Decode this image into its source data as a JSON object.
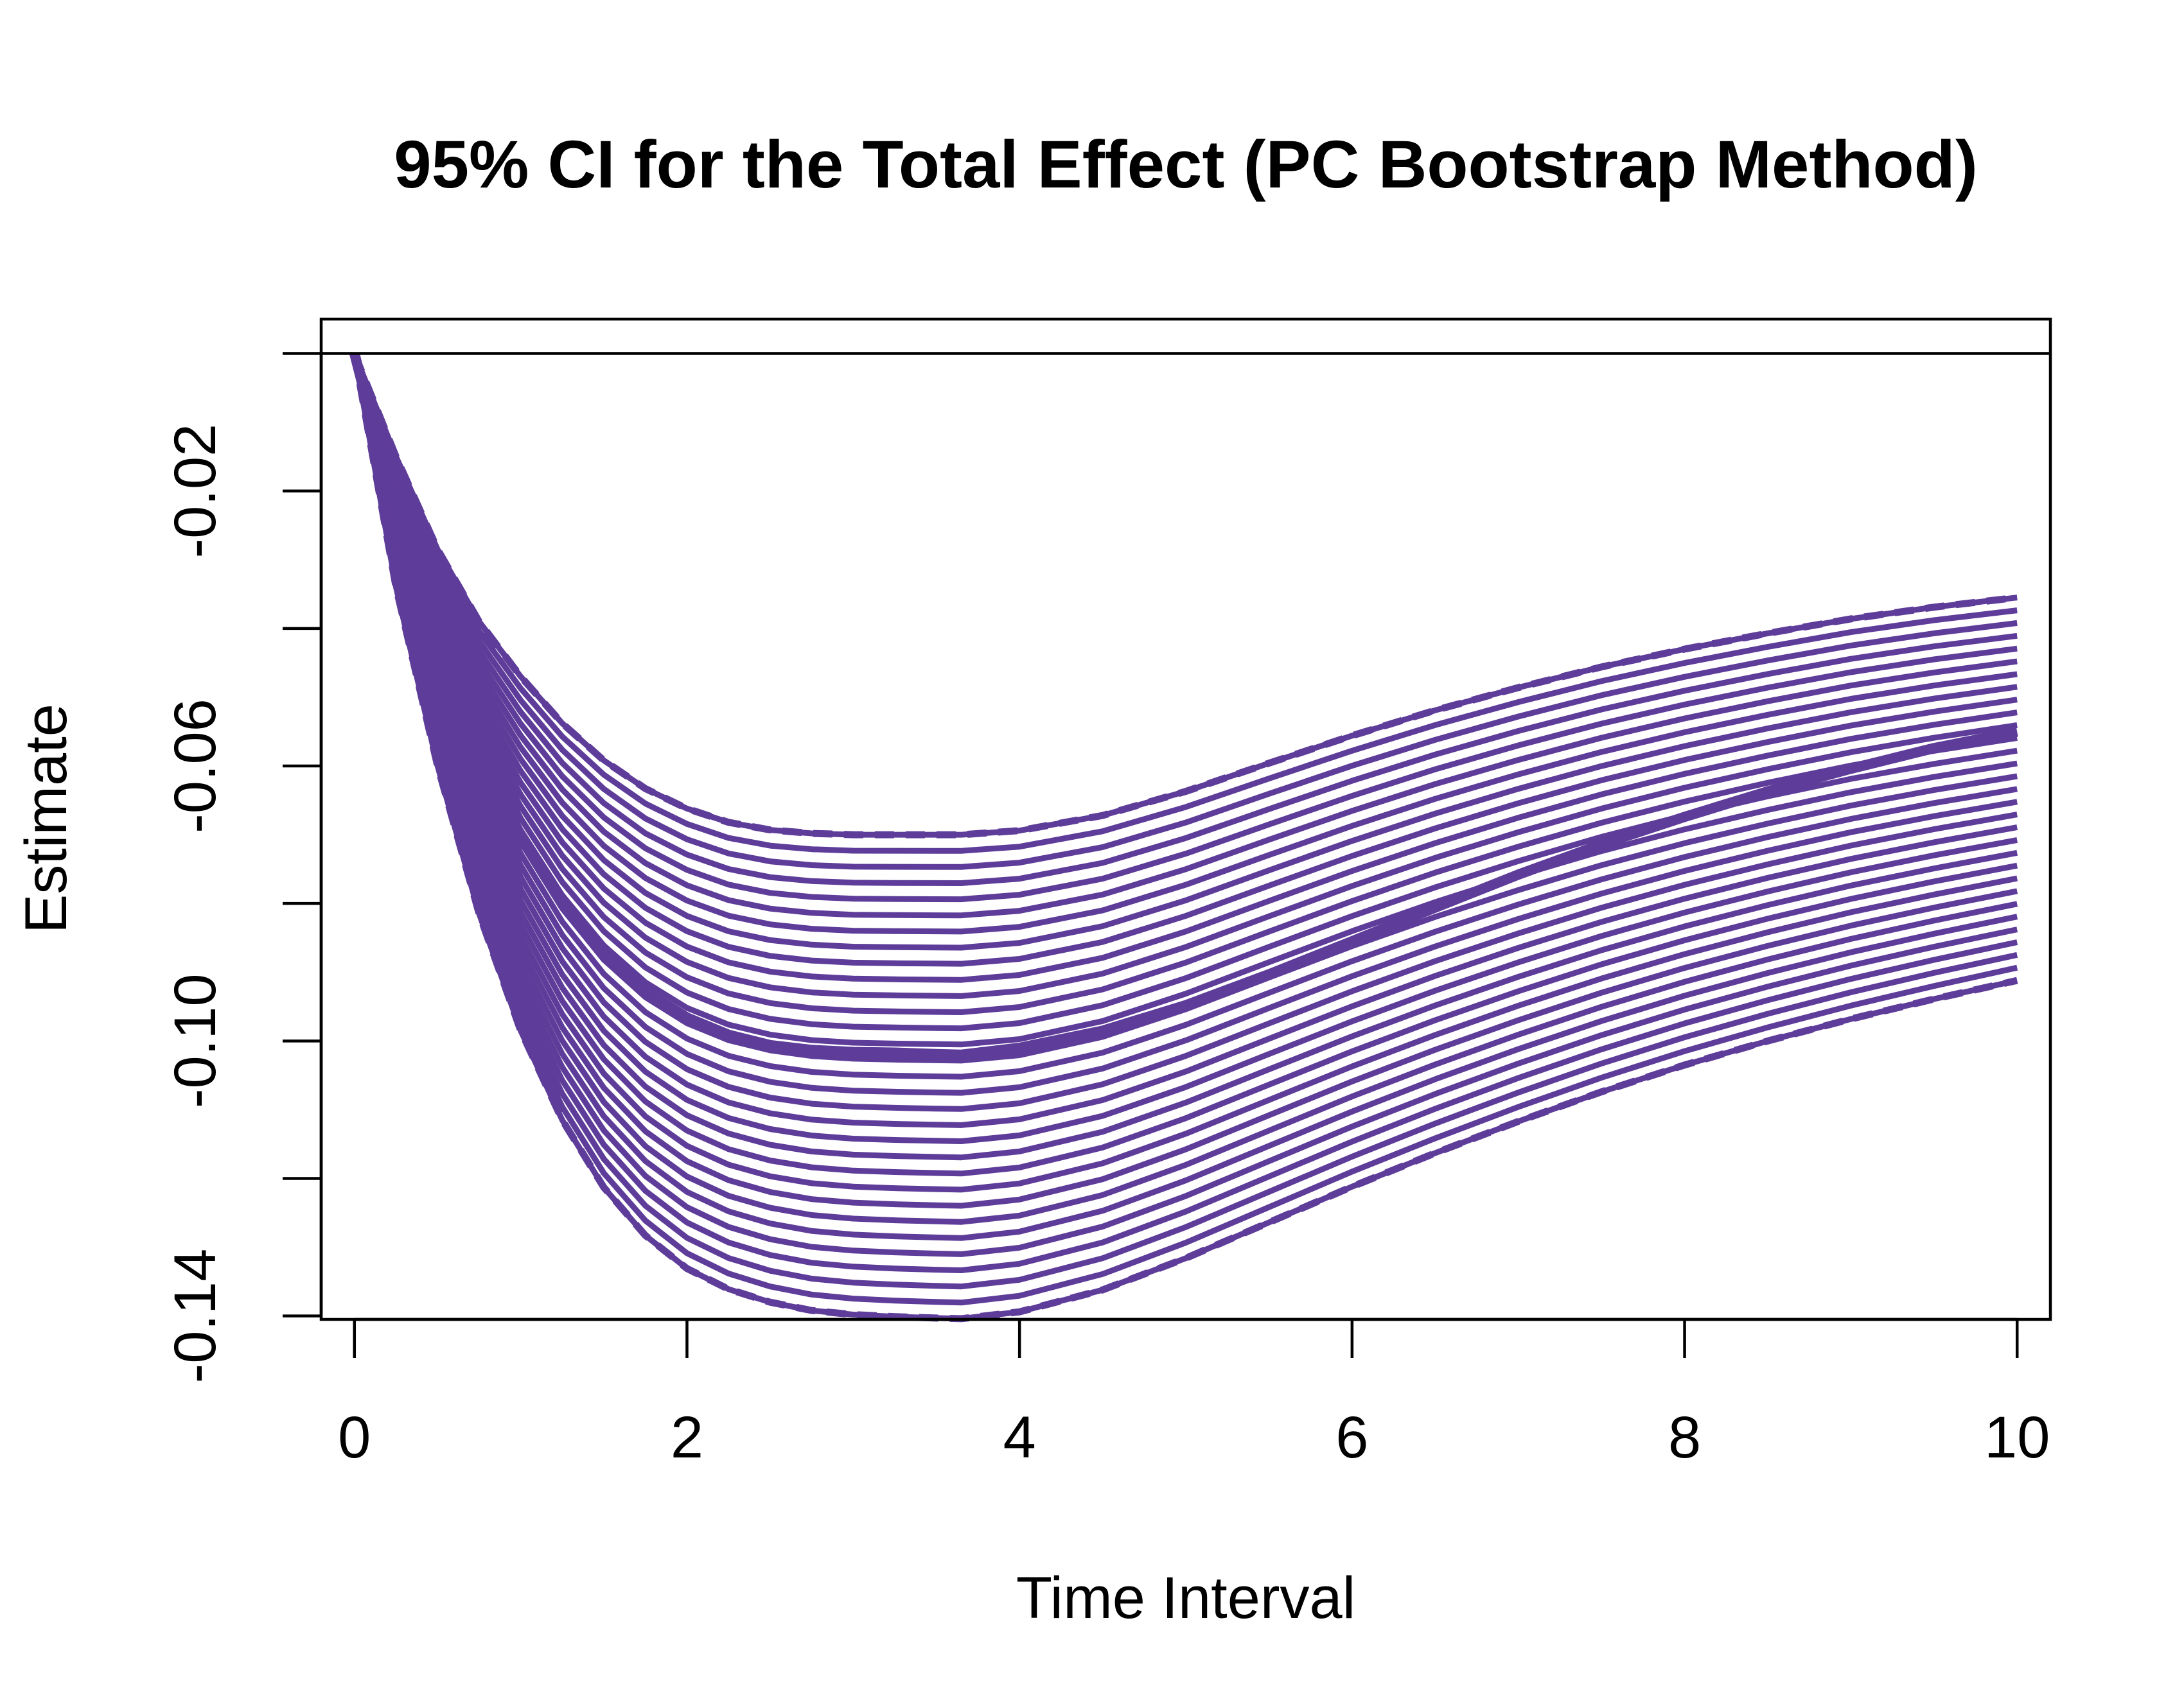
{
  "chart_data": {
    "type": "line",
    "title": "95% CI for the Total Effect (PC Bootstrap Method)",
    "xlabel": "Time Interval",
    "ylabel": "Estimate",
    "xlim": [
      -0.2,
      10.2
    ],
    "ylim": [
      -0.1405,
      0.005
    ],
    "x_ticks": [
      0,
      2,
      4,
      6,
      8,
      10
    ],
    "x_tick_labels": [
      "0",
      "2",
      "4",
      "6",
      "8",
      "10"
    ],
    "y_ticks": [
      0,
      -0.02,
      -0.04,
      -0.06,
      -0.08,
      -0.1,
      -0.12,
      -0.14
    ],
    "y_tick_labels": [
      "",
      "-0.02",
      "",
      "-0.06",
      "",
      "-0.10",
      "",
      "-0.14"
    ],
    "reference_line_y": 0,
    "line_color": "#5E3C99",
    "grid": false,
    "legend": "none",
    "x": [
      0,
      0.25,
      0.5,
      0.75,
      1,
      1.25,
      1.5,
      1.75,
      2,
      2.25,
      2.5,
      2.75,
      3,
      3.25,
      3.5,
      3.65,
      4,
      4.5,
      5,
      5.5,
      6,
      6.5,
      7,
      7.5,
      8,
      8.5,
      9,
      9.5,
      10
    ],
    "series": [
      {
        "role": "point estimate",
        "style": "solid-thick",
        "values": [
          0,
          -0.0235,
          -0.0425,
          -0.058,
          -0.0703,
          -0.08,
          -0.0873,
          -0.0928,
          -0.0966,
          -0.0991,
          -0.1006,
          -0.1013,
          -0.1016,
          -0.1017,
          -0.1019,
          -0.102,
          -0.101,
          -0.0985,
          -0.0948,
          -0.0903,
          -0.0855,
          -0.0806,
          -0.0758,
          -0.0714,
          -0.0674,
          -0.0637,
          -0.0604,
          -0.0574,
          -0.055
        ]
      },
      {
        "role": "upper 95% CI bound",
        "style": "dashed",
        "values": [
          0,
          -0.015,
          -0.0285,
          -0.039,
          -0.047,
          -0.0538,
          -0.0592,
          -0.0633,
          -0.0662,
          -0.0682,
          -0.0693,
          -0.0698,
          -0.07,
          -0.07,
          -0.07,
          -0.07,
          -0.0694,
          -0.0672,
          -0.0637,
          -0.0596,
          -0.0556,
          -0.0519,
          -0.0486,
          -0.0456,
          -0.043,
          -0.0407,
          -0.0386,
          -0.0369,
          -0.0355
        ]
      },
      {
        "role": "lower 95% CI bound",
        "style": "dashed",
        "values": [
          0,
          -0.034,
          -0.06,
          -0.0815,
          -0.0985,
          -0.1115,
          -0.1213,
          -0.1283,
          -0.1331,
          -0.1361,
          -0.138,
          -0.1392,
          -0.1398,
          -0.1401,
          -0.1403,
          -0.1404,
          -0.1394,
          -0.1362,
          -0.1316,
          -0.1264,
          -0.1212,
          -0.1163,
          -0.1117,
          -0.1074,
          -0.1035,
          -0.1,
          -0.0968,
          -0.0939,
          -0.0912
        ]
      }
    ],
    "bootstrap_band_lines": 30
  }
}
